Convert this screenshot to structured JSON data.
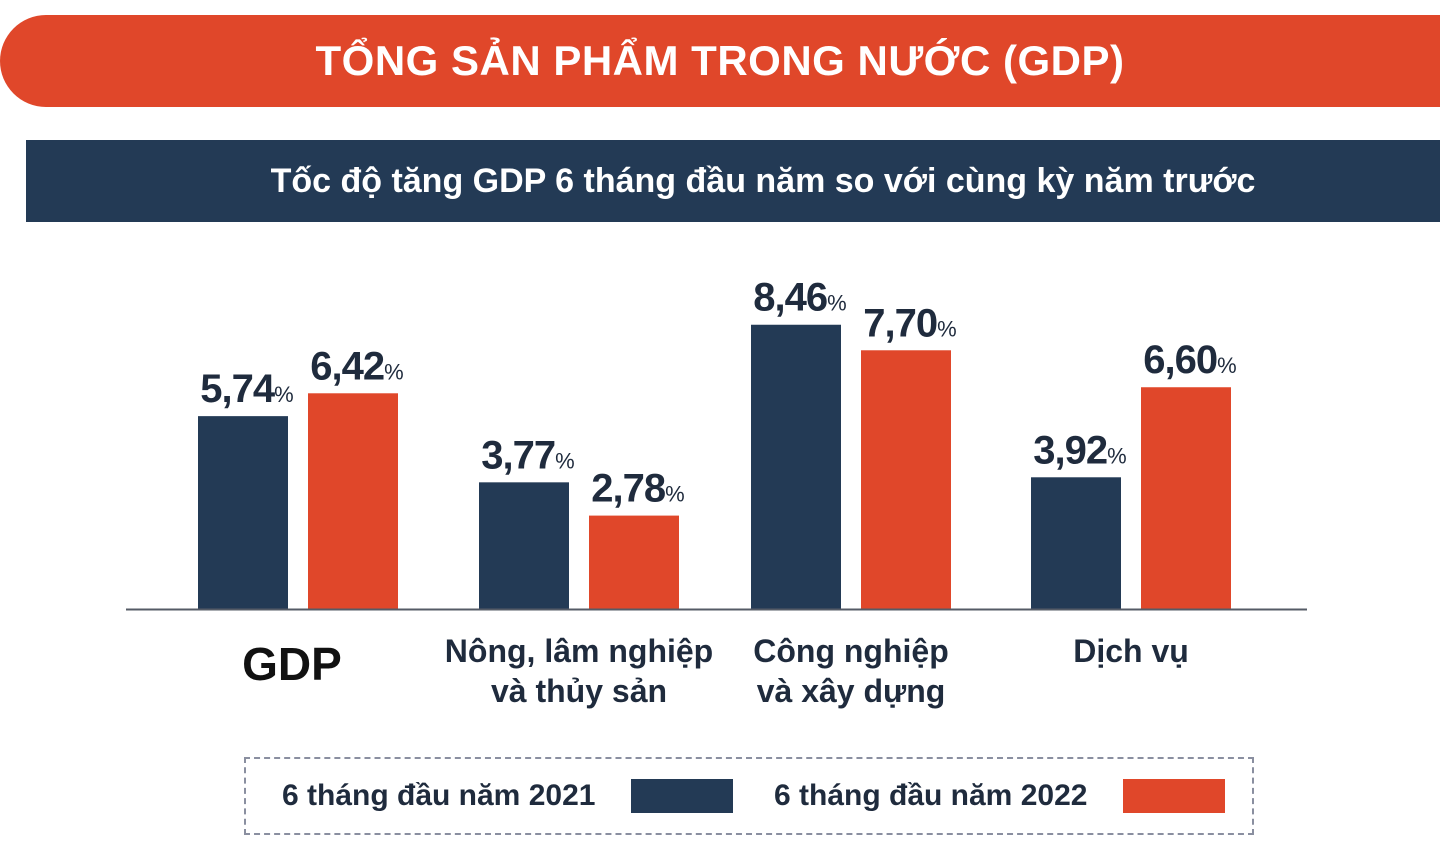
{
  "header": {
    "title": "TỔNG SẢN PHẨM TRONG NƯỚC (GDP)",
    "subtitle": "Tốc độ tăng GDP 6 tháng đầu năm so với cùng kỳ năm trước"
  },
  "colors": {
    "accent_orange": "#e0472a",
    "navy": "#233a55"
  },
  "chart_data": {
    "type": "bar",
    "title": "Tốc độ tăng GDP 6 tháng đầu năm so với cùng kỳ năm trước",
    "categories": [
      [
        "GDP"
      ],
      [
        "Nông, lâm nghiệp",
        "và thủy sản"
      ],
      [
        "Công nghiệp",
        "và xây dựng"
      ],
      [
        "Dịch vụ"
      ]
    ],
    "series": [
      {
        "name": "6 tháng đầu năm 2021",
        "color": "#233a55",
        "values": [
          5.74,
          3.77,
          8.46,
          3.92
        ],
        "labels": [
          "5,74",
          "3,77",
          "8,46",
          "3,92"
        ]
      },
      {
        "name": "6 tháng đầu năm 2022",
        "color": "#e0472a",
        "values": [
          6.42,
          2.78,
          7.7,
          6.6
        ],
        "labels": [
          "6,42",
          "2,78",
          "7,70",
          "6,60"
        ]
      }
    ],
    "unit": "%",
    "ylim": [
      0,
      10
    ],
    "grid": false,
    "legend": "bottom"
  }
}
